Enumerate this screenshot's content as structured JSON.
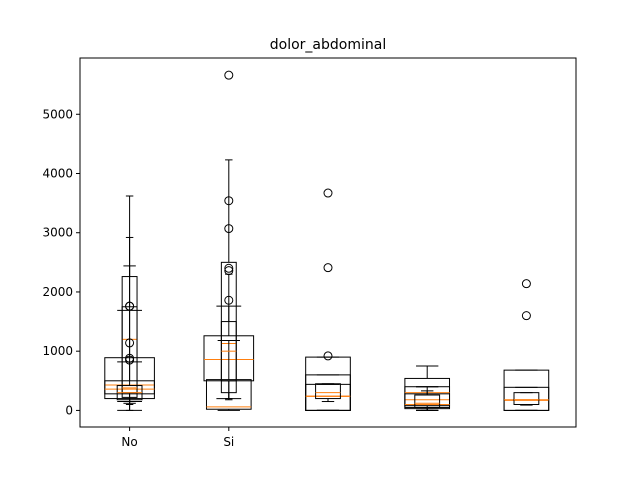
{
  "chart_data": {
    "type": "boxplot",
    "title": "dolor_abdominal",
    "xlabel": "",
    "ylabel": "",
    "ylim": [
      -280,
      5950
    ],
    "xlim": [
      0.5,
      5.5
    ],
    "grid": false,
    "yticks": [
      0,
      1000,
      2000,
      3000,
      4000,
      5000
    ],
    "xticks": [
      {
        "pos": 1,
        "label": "No"
      },
      {
        "pos": 2,
        "label": "Si"
      }
    ],
    "colors": {
      "box": "#000000",
      "median": "#ff7f0e",
      "axes": "#000000",
      "background": "#ffffff"
    },
    "boxes": [
      {
        "pos": 1,
        "width": 0.15,
        "q1": 300,
        "median": 1200,
        "q3": 2260,
        "whisker_low": 0,
        "whisker_high": 3620,
        "outliers": []
      },
      {
        "pos": 1,
        "width": 0.5,
        "q1": 200,
        "median": 430,
        "q3": 890,
        "whisker_low": 0,
        "whisker_high": 1690,
        "outliers": [
          1760
        ]
      },
      {
        "pos": 1,
        "width": 0.5,
        "q1": 280,
        "median": 360,
        "q3": 500,
        "whisker_low": 150,
        "whisker_high": 820,
        "outliers": [
          880,
          1140,
          1760
        ]
      },
      {
        "pos": 1,
        "width": 0.15,
        "q1": 220,
        "median": 380,
        "q3": 1750,
        "whisker_low": 100,
        "whisker_high": 2920,
        "outliers": [
          850
        ]
      },
      {
        "pos": 1,
        "width": 0.25,
        "q1": 180,
        "median": 300,
        "q3": 420,
        "whisker_low": 120,
        "whisker_high": 2440,
        "outliers": []
      },
      {
        "pos": 2,
        "width": 0.15,
        "q1": 500,
        "median": 1130,
        "q3": 2500,
        "whisker_low": 200,
        "whisker_high": 4230,
        "outliers": [
          5660,
          3540,
          3070,
          2400,
          2360
        ]
      },
      {
        "pos": 2,
        "width": 0.5,
        "q1": 500,
        "median": 860,
        "q3": 1260,
        "whisker_low": 200,
        "whisker_high": 1760,
        "outliers": [
          1860
        ]
      },
      {
        "pos": 2,
        "width": 0.45,
        "q1": 20,
        "median": 60,
        "q3": 520,
        "whisker_low": 0,
        "whisker_high": 1180,
        "outliers": []
      },
      {
        "pos": 2,
        "width": 0.15,
        "q1": 300,
        "median": 1000,
        "q3": 1500,
        "whisker_low": 180,
        "whisker_high": 2300,
        "outliers": []
      },
      {
        "pos": 3,
        "width": 0.45,
        "q1": 0,
        "median": 240,
        "q3": 900,
        "whisker_low": 0,
        "whisker_high": 900,
        "outliers": [
          920,
          2410,
          3670
        ]
      },
      {
        "pos": 3,
        "width": 0.45,
        "q1": 0,
        "median": 240,
        "q3": 600,
        "whisker_low": 0,
        "whisker_high": 600,
        "outliers": []
      },
      {
        "pos": 3,
        "width": 0.45,
        "q1": 0,
        "median": 240,
        "q3": 440,
        "whisker_low": 0,
        "whisker_high": 440,
        "outliers": []
      },
      {
        "pos": 3,
        "width": 0.25,
        "q1": 200,
        "median": 300,
        "q3": 450,
        "whisker_low": 150,
        "whisker_high": 450,
        "outliers": []
      },
      {
        "pos": 4,
        "width": 0.45,
        "q1": 50,
        "median": 180,
        "q3": 540,
        "whisker_low": 0,
        "whisker_high": 750,
        "outliers": []
      },
      {
        "pos": 4,
        "width": 0.45,
        "q1": 80,
        "median": 300,
        "q3": 400,
        "whisker_low": 0,
        "whisker_high": 400,
        "outliers": []
      },
      {
        "pos": 4,
        "width": 0.45,
        "q1": 30,
        "median": 100,
        "q3": 280,
        "whisker_low": 0,
        "whisker_high": 400,
        "outliers": []
      },
      {
        "pos": 4,
        "width": 0.25,
        "q1": 50,
        "median": 120,
        "q3": 260,
        "whisker_low": 0,
        "whisker_high": 330,
        "outliers": []
      },
      {
        "pos": 5,
        "width": 0.45,
        "q1": 0,
        "median": 170,
        "q3": 680,
        "whisker_low": 0,
        "whisker_high": 680,
        "outliers": [
          1600,
          2140
        ]
      },
      {
        "pos": 5,
        "width": 0.45,
        "q1": 0,
        "median": 180,
        "q3": 390,
        "whisker_low": 0,
        "whisker_high": 390,
        "outliers": []
      },
      {
        "pos": 5,
        "width": 0.25,
        "q1": 100,
        "median": 180,
        "q3": 300,
        "whisker_low": 90,
        "whisker_high": 300,
        "outliers": []
      }
    ]
  }
}
